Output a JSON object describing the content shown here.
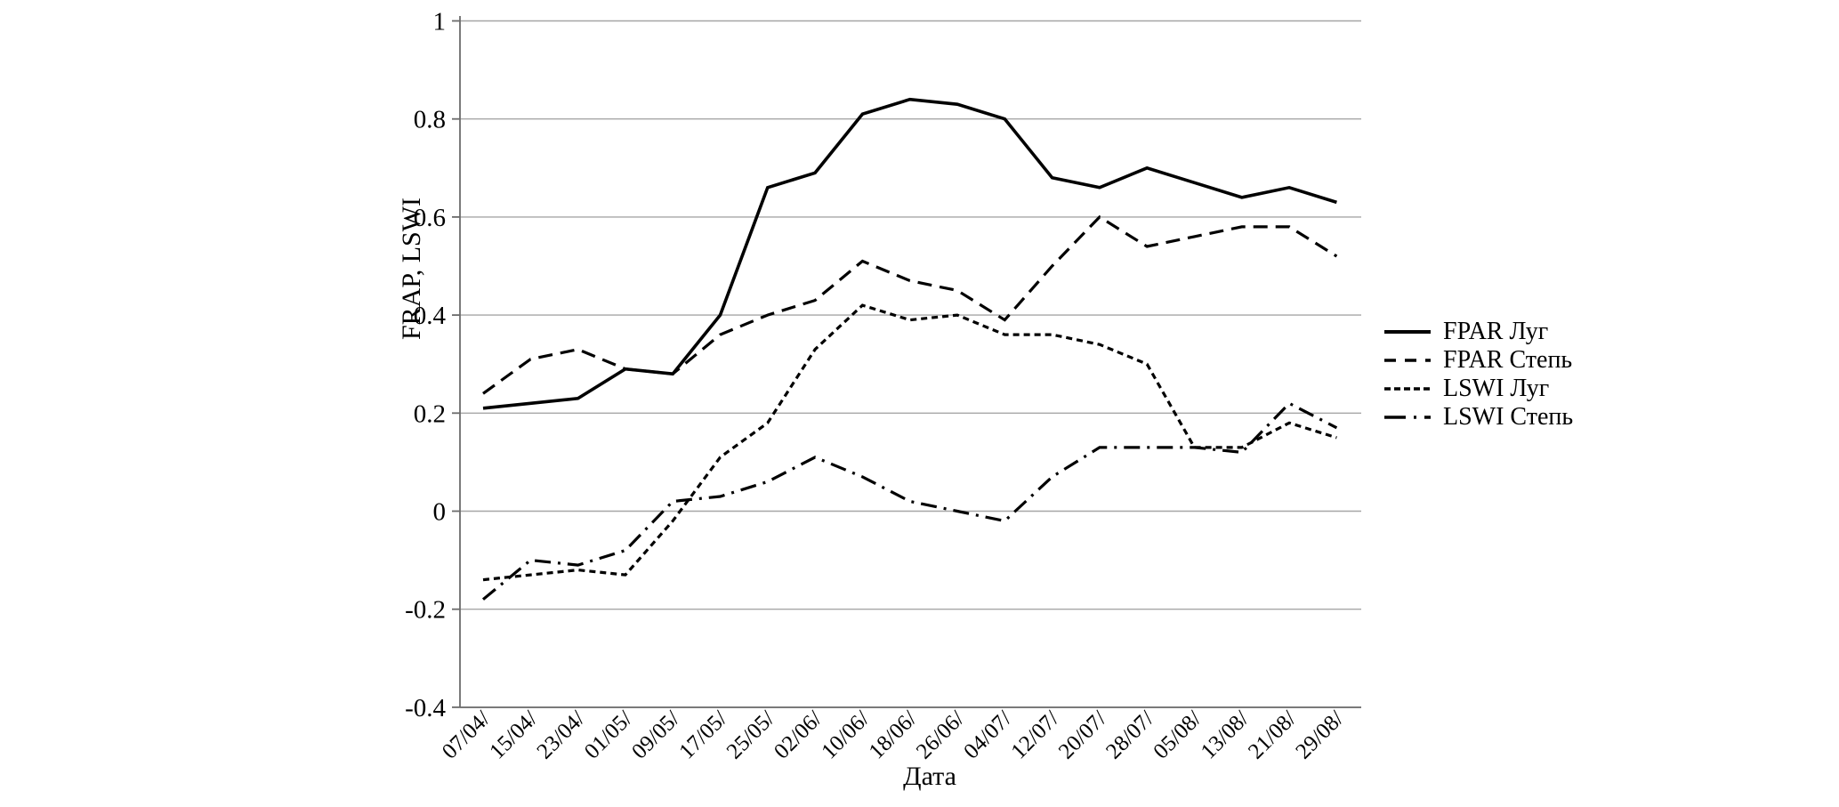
{
  "chart_data": {
    "type": "line",
    "title": "",
    "xlabel": "Дата",
    "ylabel": "FRAP, LSWI",
    "ylim": [
      -0.4,
      1
    ],
    "ytick_values": [
      1,
      0.8,
      0.6,
      0.4,
      0.2,
      0,
      -0.2,
      -0.4
    ],
    "ytick_labels": [
      "1",
      "0.8",
      "0.6",
      "0.4",
      "0.2",
      "0",
      "-0.2",
      "-0.4"
    ],
    "grid": true,
    "legend_position": "right",
    "categories": [
      "07/04/",
      "15/04/",
      "23/04/",
      "01/05/",
      "09/05/",
      "17/05/",
      "25/05/",
      "02/06/",
      "10/06/",
      "18/06/",
      "26/06/",
      "04/07/",
      "12/07/",
      "20/07/",
      "28/07/",
      "05/08/",
      "13/08/",
      "21/08/",
      "29/08/"
    ],
    "series": [
      {
        "name": "FPAR Луг",
        "dash": "solid",
        "values": [
          0.21,
          0.22,
          0.23,
          0.29,
          0.28,
          0.4,
          0.66,
          0.69,
          0.81,
          0.84,
          0.83,
          0.8,
          0.68,
          0.66,
          0.7,
          0.67,
          0.64,
          0.66,
          0.63
        ]
      },
      {
        "name": "FPAR Степь",
        "dash": "long-dash",
        "values": [
          0.24,
          0.31,
          0.33,
          0.29,
          0.28,
          0.36,
          0.4,
          0.43,
          0.51,
          0.47,
          0.45,
          0.39,
          0.5,
          0.6,
          0.54,
          0.56,
          0.58,
          0.58,
          0.52
        ]
      },
      {
        "name": "LSWI Луг",
        "dash": "short-dash",
        "values": [
          -0.14,
          -0.13,
          -0.12,
          -0.13,
          -0.02,
          0.11,
          0.18,
          0.33,
          0.42,
          0.39,
          0.4,
          0.36,
          0.36,
          0.34,
          0.3,
          0.13,
          0.13,
          0.18,
          0.15
        ]
      },
      {
        "name": "LSWI Степь",
        "dash": "dash-dot",
        "values": [
          -0.18,
          -0.1,
          -0.11,
          -0.08,
          0.02,
          0.03,
          0.06,
          0.11,
          0.07,
          0.02,
          0.0,
          -0.02,
          0.07,
          0.13,
          0.13,
          0.13,
          0.12,
          0.22,
          0.17
        ]
      }
    ],
    "colors": {
      "series_line": "#000000",
      "gridline": "#a6a6a6",
      "axis_line": "#6b6b6b",
      "text": "#000000"
    }
  }
}
